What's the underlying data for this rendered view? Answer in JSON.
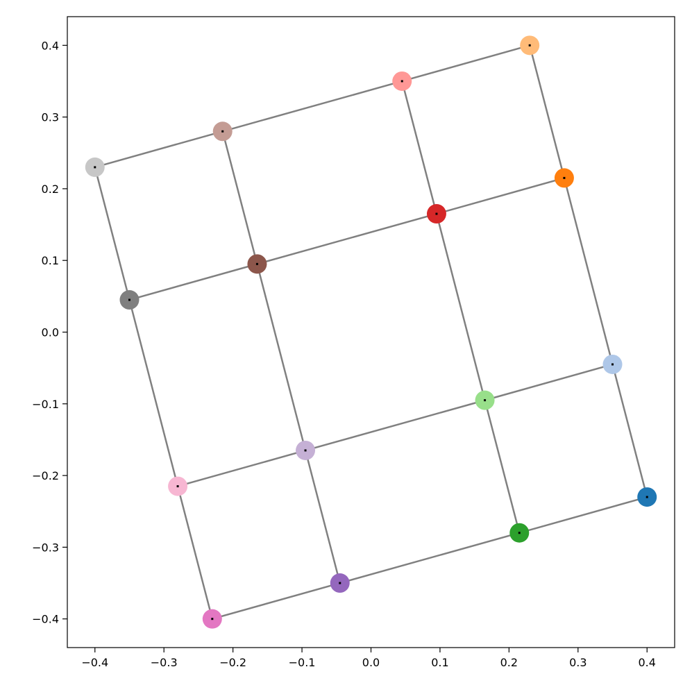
{
  "chart_data": {
    "type": "scatter",
    "title": "",
    "xlabel": "",
    "ylabel": "",
    "xlim": [
      -0.44,
      0.44
    ],
    "ylim": [
      -0.44,
      0.44
    ],
    "x_ticks": [
      -0.4,
      -0.3,
      -0.2,
      -0.1,
      0.0,
      0.1,
      0.2,
      0.3,
      0.4
    ],
    "y_ticks": [
      -0.4,
      -0.3,
      -0.2,
      -0.1,
      0.0,
      0.1,
      0.2,
      0.3,
      0.4
    ],
    "x_tick_labels": [
      "−0.4",
      "−0.3",
      "−0.2",
      "−0.1",
      "0.0",
      "0.1",
      "0.2",
      "0.3",
      "0.4"
    ],
    "y_tick_labels": [
      "−0.4",
      "−0.3",
      "−0.2",
      "−0.1",
      "0.0",
      "0.1",
      "0.2",
      "0.3",
      "0.4"
    ],
    "grid": false,
    "legend": "none",
    "mesh": {
      "rows": 4,
      "cols": 4,
      "nodes": [
        [
          [
            -0.23,
            -0.4
          ],
          [
            -0.045,
            -0.35
          ],
          [
            0.215,
            -0.28
          ],
          [
            0.4,
            -0.23
          ]
        ],
        [
          [
            -0.28,
            -0.215
          ],
          [
            -0.095,
            -0.165
          ],
          [
            0.165,
            -0.095
          ],
          [
            0.35,
            -0.045
          ]
        ],
        [
          [
            -0.35,
            0.045
          ],
          [
            -0.165,
            0.095
          ],
          [
            0.095,
            0.165
          ],
          [
            0.28,
            0.215
          ]
        ],
        [
          [
            -0.4,
            0.23
          ],
          [
            -0.215,
            0.28
          ],
          [
            0.045,
            0.35
          ],
          [
            0.23,
            0.4
          ]
        ]
      ],
      "line_color": "#808080"
    },
    "points": [
      {
        "x": -0.23,
        "y": -0.4,
        "color": "#e377c2"
      },
      {
        "x": -0.045,
        "y": -0.35,
        "color": "#9467bd"
      },
      {
        "x": 0.215,
        "y": -0.28,
        "color": "#2ca02c"
      },
      {
        "x": 0.4,
        "y": -0.23,
        "color": "#1f77b4"
      },
      {
        "x": -0.28,
        "y": -0.215,
        "color": "#f7b6d2"
      },
      {
        "x": -0.095,
        "y": -0.165,
        "color": "#c5b0d5"
      },
      {
        "x": 0.165,
        "y": -0.095,
        "color": "#98df8a"
      },
      {
        "x": 0.35,
        "y": -0.045,
        "color": "#aec7e8"
      },
      {
        "x": -0.35,
        "y": 0.045,
        "color": "#7f7f7f"
      },
      {
        "x": -0.165,
        "y": 0.095,
        "color": "#8c564b"
      },
      {
        "x": 0.095,
        "y": 0.165,
        "color": "#d62728"
      },
      {
        "x": 0.28,
        "y": 0.215,
        "color": "#ff7f0e"
      },
      {
        "x": -0.4,
        "y": 0.23,
        "color": "#c7c7c7"
      },
      {
        "x": -0.215,
        "y": 0.28,
        "color": "#c49c94"
      },
      {
        "x": 0.045,
        "y": 0.35,
        "color": "#ff9896"
      },
      {
        "x": 0.23,
        "y": 0.4,
        "color": "#ffbb78"
      }
    ]
  }
}
